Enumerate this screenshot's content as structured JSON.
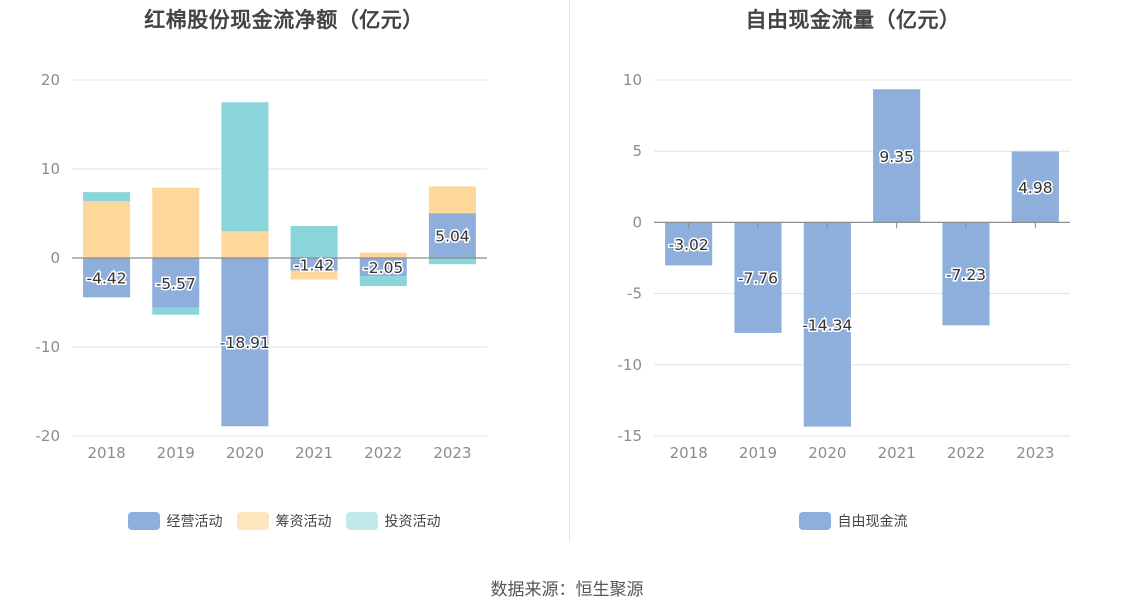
{
  "source_label": "数据来源：恒生聚源",
  "chart_data": [
    {
      "type": "bar",
      "stacked": true,
      "title": "红棉股份现金流净额（亿元）",
      "categories": [
        "2018",
        "2019",
        "2020",
        "2021",
        "2022",
        "2023"
      ],
      "ylim": [
        -20,
        20
      ],
      "yticks": [
        20,
        10,
        0,
        -10,
        -20
      ],
      "grid": true,
      "legend_position": "bottom",
      "series": [
        {
          "name": "经营活动",
          "color": "#8eaedc",
          "values": [
            -4.42,
            -5.57,
            -18.91,
            -1.42,
            -2.05,
            5.04
          ],
          "labels": [
            "-4.42",
            "-5.57",
            "-18.91",
            "-1.42",
            "-2.05",
            "5.04"
          ]
        },
        {
          "name": "筹资活动",
          "color": "#fdd89a",
          "values": [
            6.4,
            7.9,
            3.0,
            -1.0,
            0.6,
            3.0
          ]
        },
        {
          "name": "投资活动",
          "color": "#89d5d9",
          "values": [
            1.0,
            -0.8,
            14.5,
            3.6,
            -1.1,
            -0.7
          ]
        }
      ]
    },
    {
      "type": "bar",
      "title": "自由现金流量（亿元）",
      "categories": [
        "2018",
        "2019",
        "2020",
        "2021",
        "2022",
        "2023"
      ],
      "ylim": [
        -15,
        10
      ],
      "yticks": [
        10,
        5,
        0,
        -5,
        -10,
        -15
      ],
      "grid": true,
      "legend_position": "bottom",
      "series": [
        {
          "name": "自由现金流",
          "color": "#8eaedc",
          "values": [
            -3.02,
            -7.76,
            -14.34,
            9.35,
            -7.23,
            4.98
          ],
          "labels": [
            "-3.02",
            "-7.76",
            "-14.34",
            "9.35",
            "-7.23",
            "4.98"
          ]
        }
      ]
    }
  ]
}
